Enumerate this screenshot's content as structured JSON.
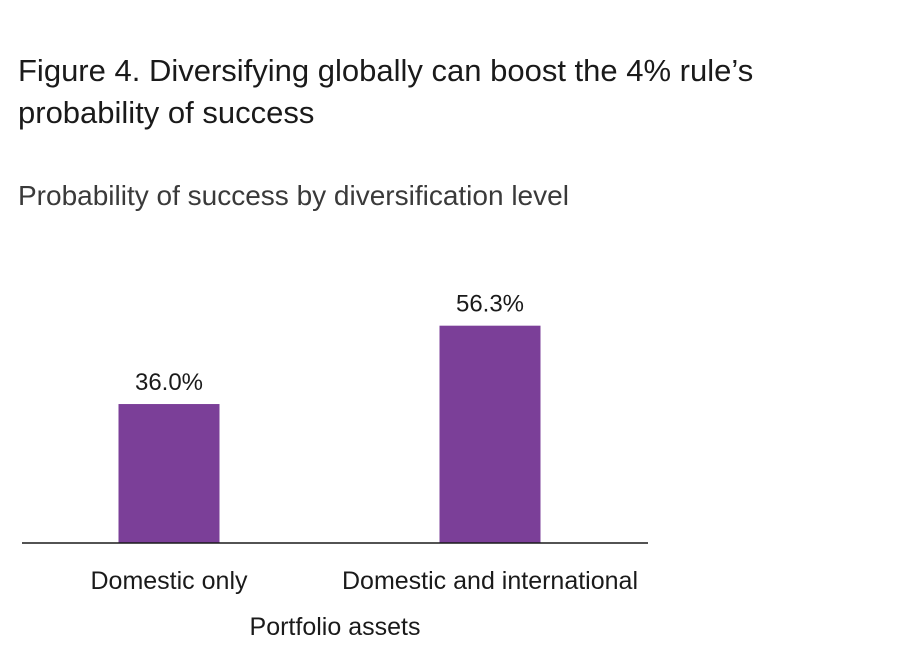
{
  "title": "Figure 4. Diversifying globally can boost the 4% rule’s probability of success",
  "subtitle": "Probability of success by diversification level",
  "chart_data": {
    "type": "bar",
    "categories": [
      "Domestic only",
      "Domestic and international"
    ],
    "values": [
      36.0,
      56.3
    ],
    "value_labels": [
      "36.0%",
      "56.3%"
    ],
    "xlabel": "Portfolio assets",
    "ylabel": "",
    "ylim": [
      0,
      100
    ],
    "grid": false,
    "legend": "none",
    "bar_color": "#7B3F98"
  }
}
